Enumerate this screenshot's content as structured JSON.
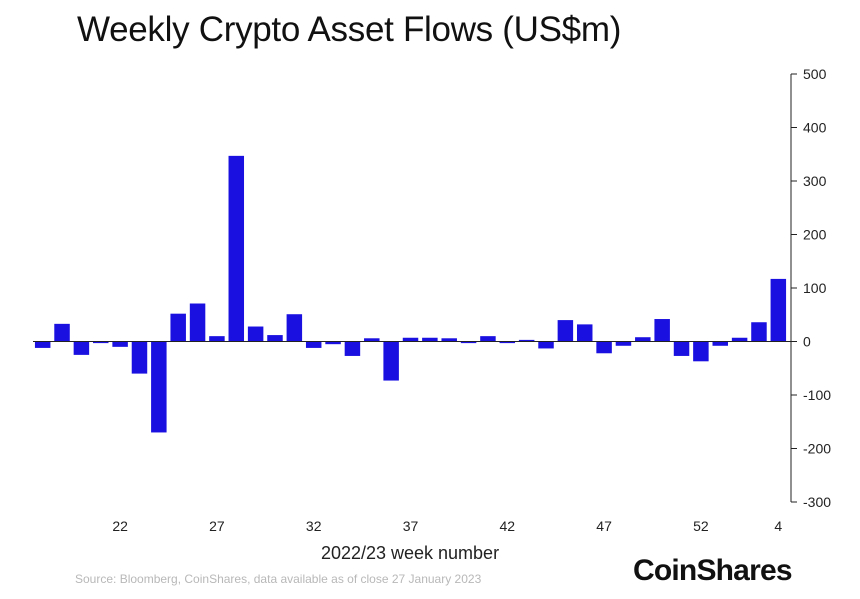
{
  "title": "Weekly Crypto Asset Flows (US$m)",
  "source": "Source: Bloomberg, CoinShares, data available as of close 27 January 2023",
  "brand": "CoinShares",
  "colors": {
    "bar": "#1a10e0",
    "axis": "#222222"
  },
  "chart_data": {
    "type": "bar",
    "title": "Weekly Crypto Asset Flows (US$m)",
    "xlabel": "2022/23 week number",
    "ylabel": "",
    "ylim": [
      -300,
      500
    ],
    "yticks": [
      -300,
      -200,
      -100,
      0,
      100,
      200,
      300,
      400,
      500
    ],
    "y_axis_side": "right",
    "grid": false,
    "categories": [
      "18",
      "19",
      "20",
      "21",
      "22",
      "23",
      "24",
      "25",
      "26",
      "27",
      "28",
      "29",
      "30",
      "31",
      "32",
      "33",
      "34",
      "35",
      "36",
      "37",
      "38",
      "39",
      "40",
      "41",
      "42",
      "43",
      "44",
      "45",
      "46",
      "47",
      "48",
      "49",
      "50",
      "51",
      "52",
      "1",
      "2",
      "3",
      "4"
    ],
    "xtick_labels": [
      "22",
      "27",
      "32",
      "37",
      "42",
      "47",
      "52",
      "4"
    ],
    "values": [
      -12,
      33,
      -25,
      -3,
      -10,
      -60,
      -170,
      52,
      71,
      10,
      347,
      28,
      12,
      51,
      -12,
      -5,
      -27,
      6,
      -73,
      7,
      7,
      6,
      -3,
      10,
      -3,
      3,
      -13,
      40,
      32,
      -22,
      -8,
      8,
      42,
      -27,
      -37,
      -8,
      7,
      36,
      117
    ]
  }
}
